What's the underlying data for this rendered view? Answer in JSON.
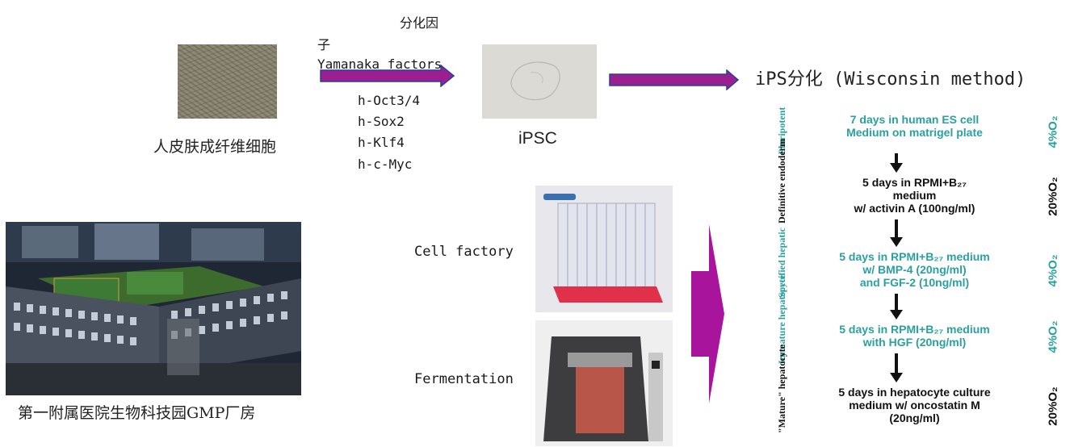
{
  "top_flow": {
    "factor_label_line1": "分化因",
    "factor_label_line2": "子",
    "factor_label_line3": "Yamanaka factors",
    "factors": [
      "h-Oct3/4",
      "h-Sox2",
      "h-Klf4",
      "h-c-Myc"
    ],
    "source_cell_label": "人皮肤成纤维细胞",
    "ipsc_label": "iPSC",
    "protocol_title": "iPS分化 (Wisconsin method)"
  },
  "production": {
    "cell_factory_label": "Cell factory",
    "fermentation_label": "Fermentation",
    "campus_caption": "第一附属医院生物科技园GMP厂房"
  },
  "protocol": {
    "steps": [
      {
        "stage": "Pluripotent",
        "lines": [
          "7 days in human ES cell",
          "Medium on matrigel plate"
        ],
        "oxygen": "4%O₂",
        "color": "teal"
      },
      {
        "stage": "Definitive endoderm",
        "lines": [
          "5 days in RPMI+B₂₇",
          "medium",
          "w/ activin A (100ng/ml)"
        ],
        "oxygen": "20%O₂",
        "color": "black"
      },
      {
        "stage": "Specified hepatic",
        "lines": [
          "5 days in RPMI+B₂₇ medium",
          "w/ BMP-4 (20ng/ml)",
          "and FGF-2 (10ng/ml)"
        ],
        "oxygen": "4%O₂",
        "color": "teal"
      },
      {
        "stage": "Immature hepatocyte",
        "lines": [
          "5 days in RPMI+B₂₇ medium",
          "with HGF (20ng/ml)"
        ],
        "oxygen": "4%O₂",
        "color": "teal"
      },
      {
        "stage": "\"Mature\" hepatocyte",
        "lines": [
          "5 days in hepatocyte culture",
          "medium w/ oncostatin M",
          "(20ng/ml)"
        ],
        "oxygen": "20%O₂",
        "color": "black"
      }
    ]
  },
  "colors": {
    "arrow_magenta": "#9b1f8e",
    "arrow_border": "#2b3f9e",
    "teal": "#2aa0a0"
  }
}
